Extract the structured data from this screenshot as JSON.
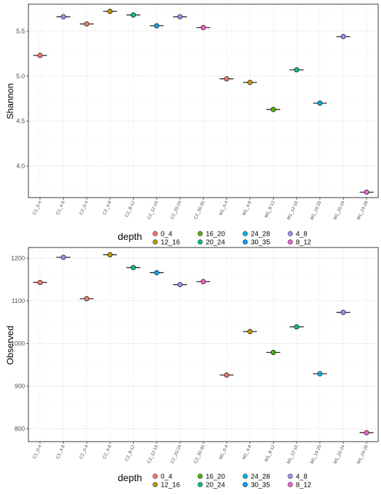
{
  "chart_data": [
    {
      "type": "scatter",
      "ylabel": "Shannon",
      "ylim": [
        3.65,
        5.8
      ],
      "yticks": [
        "4.0",
        "4.5",
        "5.0",
        "5.5"
      ],
      "ytick_values": [
        4.0,
        4.5,
        5.0,
        5.5
      ],
      "grid": true,
      "categories": [
        "C1_0-4",
        "C1_4-8",
        "C2_0-4",
        "C2_4-8",
        "C2_8-12",
        "C2_12-16",
        "C2_20-24",
        "C2_30-35",
        "M1_0-4",
        "M1_4-8",
        "M1_8-12",
        "M1_12-16",
        "M1_16-20",
        "M1_20-24",
        "M1_24-28"
      ],
      "depth": [
        "0_4",
        "4_8",
        "0_4",
        "12_16",
        "20_24",
        "30_35",
        "4_8",
        "8_12",
        "0_4",
        "12_16",
        "16_20",
        "20_24",
        "24_28",
        "4_8",
        "8_12"
      ],
      "values": [
        5.23,
        5.66,
        5.58,
        5.72,
        5.68,
        5.56,
        5.66,
        5.54,
        4.97,
        4.93,
        4.63,
        5.07,
        4.7,
        5.44,
        3.71
      ]
    },
    {
      "type": "scatter",
      "ylabel": "Observed",
      "ylim": [
        770,
        1225
      ],
      "yticks": [
        "800",
        "900",
        "1000",
        "1100",
        "1200"
      ],
      "ytick_values": [
        800,
        900,
        1000,
        1100,
        1200
      ],
      "grid": true,
      "categories": [
        "C1_0-4",
        "C1_4-8",
        "C2_0-4",
        "C2_4-8",
        "C2_8-12",
        "C2_12-16",
        "C2_20-24",
        "C2_30-35",
        "M1_0-4",
        "M1_4-8",
        "M1_8-12",
        "M1_12-16",
        "M1_16-20",
        "M1_20-24",
        "M1_24-28"
      ],
      "depth": [
        "0_4",
        "4_8",
        "0_4",
        "12_16",
        "20_24",
        "30_35",
        "4_8",
        "8_12",
        "0_4",
        "12_16",
        "16_20",
        "20_24",
        "24_28",
        "4_8",
        "8_12"
      ],
      "values": [
        1143,
        1202,
        1105,
        1208,
        1178,
        1166,
        1138,
        1145,
        926,
        1028,
        979,
        1039,
        929,
        1073,
        791
      ]
    }
  ],
  "legend": {
    "title": "depth",
    "placement": "bottom",
    "entries": [
      {
        "label": "0_4",
        "color": "#F8766D"
      },
      {
        "label": "12_16",
        "color": "#C49A00"
      },
      {
        "label": "16_20",
        "color": "#53B400"
      },
      {
        "label": "20_24",
        "color": "#00C094"
      },
      {
        "label": "24_28",
        "color": "#00B6EB"
      },
      {
        "label": "30_35",
        "color": "#06A4FF"
      },
      {
        "label": "4_8",
        "color": "#A58AFF"
      },
      {
        "label": "8_12",
        "color": "#FB61D7"
      }
    ]
  }
}
